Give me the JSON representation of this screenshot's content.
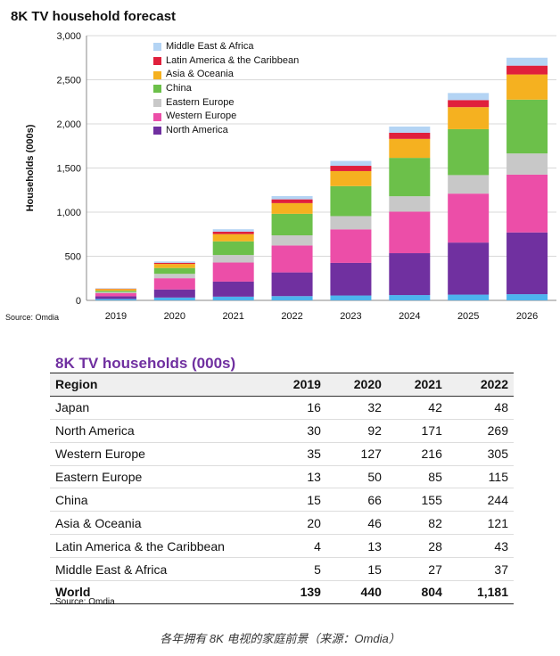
{
  "chart_data": [
    {
      "type": "bar",
      "stacked": true,
      "title": "8K TV household forecast",
      "ylabel": "Households (000s)",
      "xlabel": "",
      "ylim": [
        0,
        3000
      ],
      "yticks": [
        0,
        500,
        1000,
        1500,
        2000,
        2500,
        3000
      ],
      "ytick_labels": [
        "0",
        "500",
        "1,000",
        "1,500",
        "2,000",
        "2,500",
        "3,000"
      ],
      "grid": true,
      "legend_position": "top-left",
      "source": "Source: Omdia",
      "categories": [
        "2019",
        "2020",
        "2021",
        "2022",
        "2023",
        "2024",
        "2025",
        "2026"
      ],
      "series": [
        {
          "name": "",
          "color": "#4db3ee",
          "values": [
            16,
            32,
            42,
            48,
            55,
            60,
            65,
            70
          ]
        },
        {
          "name": "North America",
          "color": "#7030a0",
          "values": [
            30,
            92,
            171,
            269,
            370,
            475,
            590,
            700
          ]
        },
        {
          "name": "Western Europe",
          "color": "#ec4ea8",
          "values": [
            35,
            127,
            216,
            305,
            380,
            470,
            555,
            655
          ]
        },
        {
          "name": "Eastern Europe",
          "color": "#c8c8c8",
          "values": [
            13,
            50,
            85,
            115,
            150,
            175,
            210,
            240
          ]
        },
        {
          "name": "China",
          "color": "#6cc04a",
          "values": [
            15,
            66,
            155,
            244,
            340,
            435,
            520,
            610
          ]
        },
        {
          "name": "Asia & Oceania",
          "color": "#f5b120",
          "values": [
            20,
            46,
            82,
            121,
            170,
            215,
            250,
            285
          ]
        },
        {
          "name": "Latin America & the Caribbean",
          "color": "#e0203c",
          "values": [
            4,
            13,
            28,
            43,
            60,
            70,
            80,
            100
          ]
        },
        {
          "name": "Middle East & Africa",
          "color": "#b4d4f4",
          "values": [
            5,
            15,
            27,
            37,
            55,
            70,
            80,
            90
          ]
        }
      ]
    },
    {
      "type": "table",
      "title": "8K TV households (000s)",
      "columns": [
        "Region",
        "2019",
        "2020",
        "2021",
        "2022"
      ],
      "rows": [
        [
          "Japan",
          "16",
          "32",
          "42",
          "48"
        ],
        [
          "North America",
          "30",
          "92",
          "171",
          "269"
        ],
        [
          "Western Europe",
          "35",
          "127",
          "216",
          "305"
        ],
        [
          "Eastern Europe",
          "13",
          "50",
          "85",
          "115"
        ],
        [
          "China",
          "15",
          "66",
          "155",
          "244"
        ],
        [
          "Asia & Oceania",
          "20",
          "46",
          "82",
          "121"
        ],
        [
          "Latin America & the Caribbean",
          "4",
          "13",
          "28",
          "43"
        ],
        [
          "Middle East & Africa",
          "5",
          "15",
          "27",
          "37"
        ]
      ],
      "total_row": [
        "World",
        "139",
        "440",
        "804",
        "1,181"
      ],
      "source": "Source: Omdia"
    }
  ],
  "caption": "各年拥有 8K 电视的家庭前景（来源：Omdia）"
}
